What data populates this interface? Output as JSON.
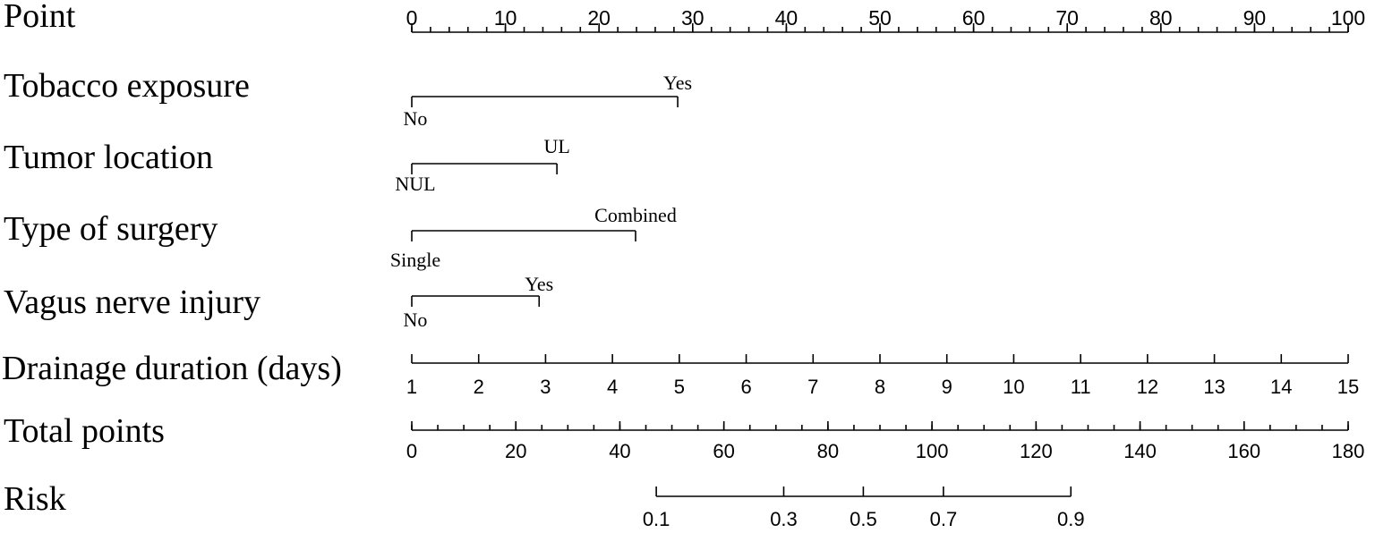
{
  "chart_data": {
    "type": "nomogram",
    "rows": [
      {
        "label": "Point",
        "kind": "scale",
        "range": [
          0,
          100
        ],
        "major_ticks": [
          0,
          10,
          20,
          30,
          40,
          50,
          60,
          70,
          80,
          90,
          100
        ],
        "minor_step": 2
      },
      {
        "label": "Tobacco exposure",
        "kind": "categorical",
        "levels": [
          {
            "name": "No",
            "points": 0
          },
          {
            "name": "Yes",
            "points": 28.4
          }
        ]
      },
      {
        "label": "Tumor location",
        "kind": "categorical",
        "levels": [
          {
            "name": "NUL",
            "points": 0
          },
          {
            "name": "UL",
            "points": 15.5
          }
        ]
      },
      {
        "label": "Type of surgery",
        "kind": "categorical",
        "levels": [
          {
            "name": "Single",
            "points": 0
          },
          {
            "name": "Combined",
            "points": 23.9
          }
        ]
      },
      {
        "label": "Vagus nerve injury",
        "kind": "categorical",
        "levels": [
          {
            "name": "No",
            "points": 0
          },
          {
            "name": "Yes",
            "points": 13.6
          }
        ]
      },
      {
        "label": "Drainage duration (days)",
        "kind": "continuous",
        "range": [
          1,
          15
        ],
        "points_range": [
          0,
          100
        ],
        "major_ticks": [
          1,
          2,
          3,
          4,
          5,
          6,
          7,
          8,
          9,
          10,
          11,
          12,
          13,
          14,
          15
        ]
      },
      {
        "label": "Total points",
        "kind": "scale",
        "range": [
          0,
          180
        ],
        "major_ticks": [
          0,
          20,
          40,
          60,
          80,
          100,
          120,
          140,
          160,
          180
        ],
        "minor_step": 5
      },
      {
        "label": "Risk",
        "kind": "risk",
        "ticks": [
          {
            "label": "0.1",
            "total_points": 47
          },
          {
            "label": "0.3",
            "total_points": 71.5
          },
          {
            "label": "0.5",
            "total_points": 86.8
          },
          {
            "label": "0.7",
            "total_points": 102.2
          },
          {
            "label": "0.9",
            "total_points": 126.7
          }
        ]
      }
    ]
  }
}
